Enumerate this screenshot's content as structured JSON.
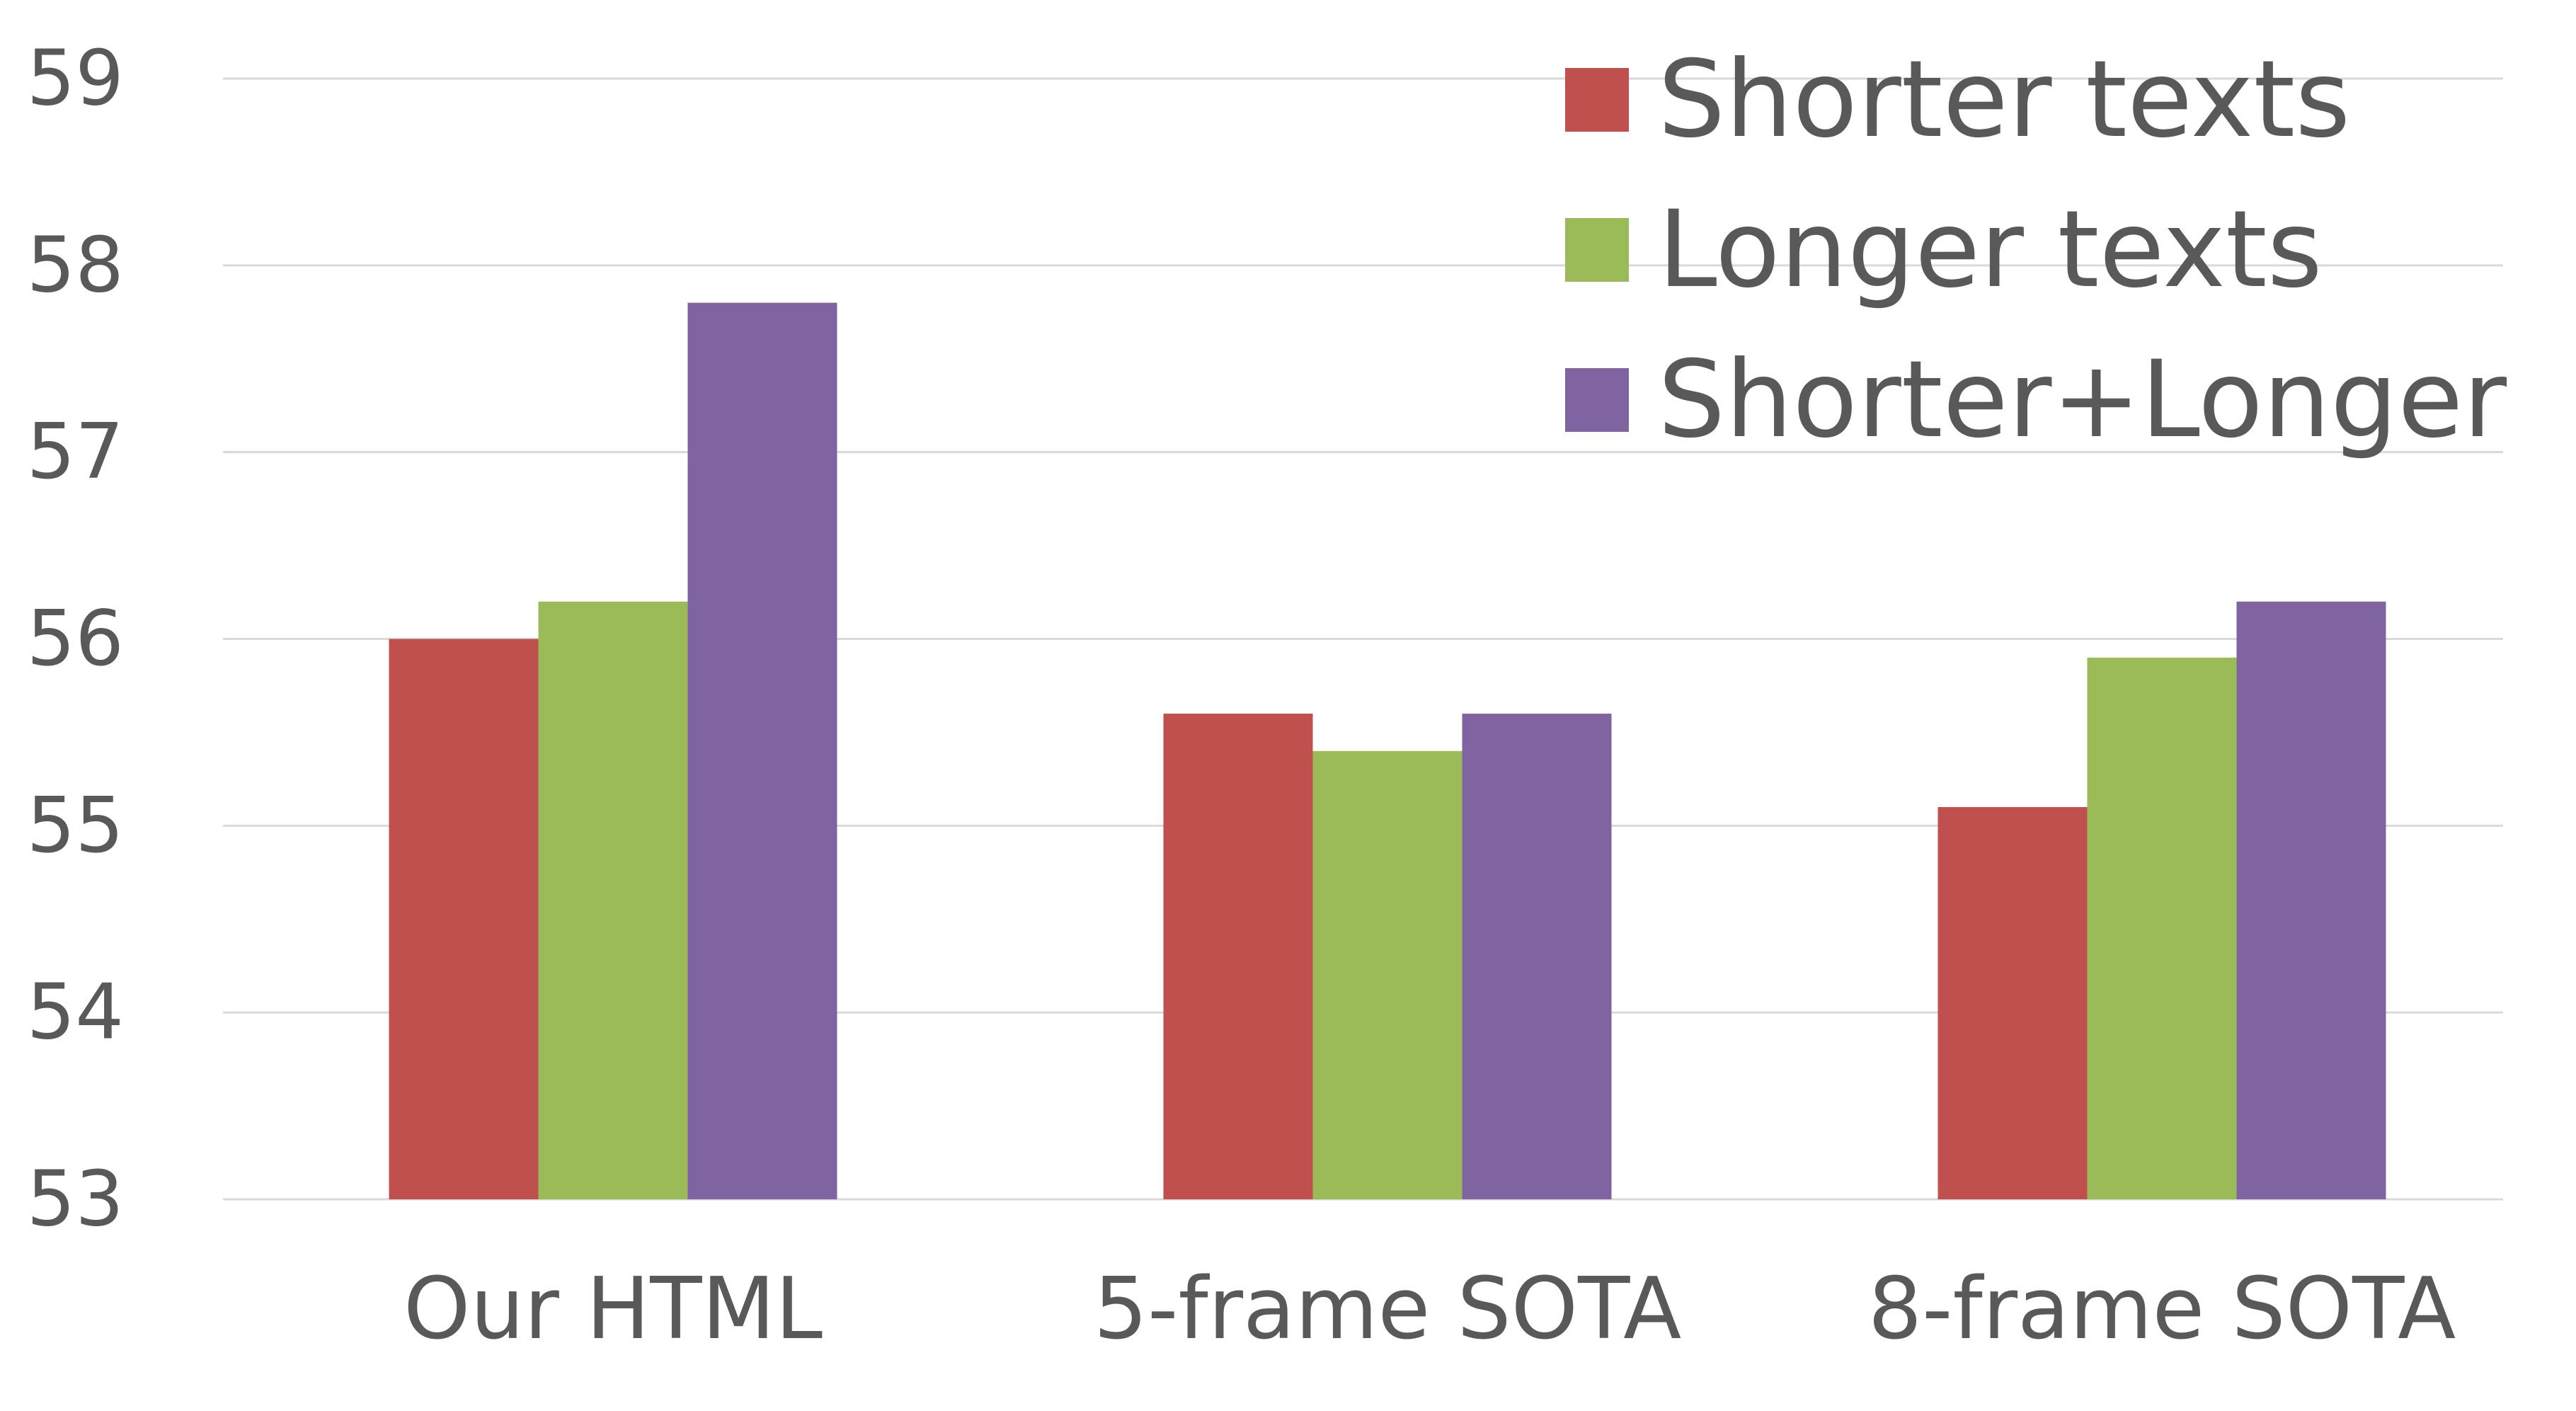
{
  "chart_data": {
    "type": "bar",
    "categories": [
      "Our HTML",
      "5-frame SOTA",
      "8-frame SOTA"
    ],
    "series": [
      {
        "name": "Shorter texts",
        "color": "#c0504d",
        "values": [
          56.0,
          55.6,
          55.1
        ]
      },
      {
        "name": "Longer texts",
        "color": "#9bbb59",
        "values": [
          56.2,
          55.4,
          55.9
        ]
      },
      {
        "name": "Shorter+Longer",
        "color": "#8064a2",
        "values": [
          57.8,
          55.6,
          56.2
        ]
      }
    ],
    "ylim": [
      53,
      59
    ],
    "yticks": [
      53,
      54,
      55,
      56,
      57,
      58,
      59
    ],
    "grid": true,
    "legend_position": "top-right"
  }
}
